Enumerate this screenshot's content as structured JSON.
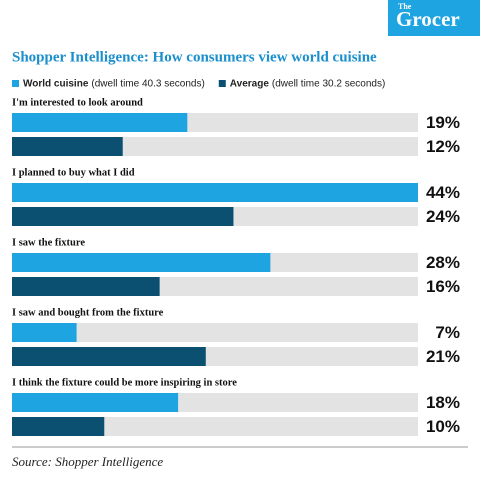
{
  "logo": {
    "small": "The",
    "main": "Grocer"
  },
  "chart_data": {
    "type": "bar",
    "orientation": "horizontal",
    "title": "Shopper Intelligence: How consumers view world cuisine",
    "categories": [
      "I'm interested to look around",
      "I planned to buy what I did",
      "I saw the fixture",
      "I saw and bought from the fixture",
      "I think the fixture could be more inspiring in store"
    ],
    "series": [
      {
        "name": "World cuisine",
        "detail": "(dwell time 40.3 seconds)",
        "color": "#1ea4e0",
        "values": [
          19,
          44,
          28,
          7,
          18
        ],
        "value_labels": [
          "19%",
          "44%",
          "28%",
          "7%",
          "18%"
        ]
      },
      {
        "name": "Average",
        "detail": "(dwell time 30.2 seconds)",
        "color": "#0b5070",
        "values": [
          12,
          24,
          16,
          21,
          10
        ],
        "value_labels": [
          "12%",
          "24%",
          "16%",
          "21%",
          "10%"
        ]
      }
    ],
    "xlim": [
      0,
      44
    ],
    "track_color": "#e3e3e3",
    "source": "Source: Shopper Intelligence"
  }
}
